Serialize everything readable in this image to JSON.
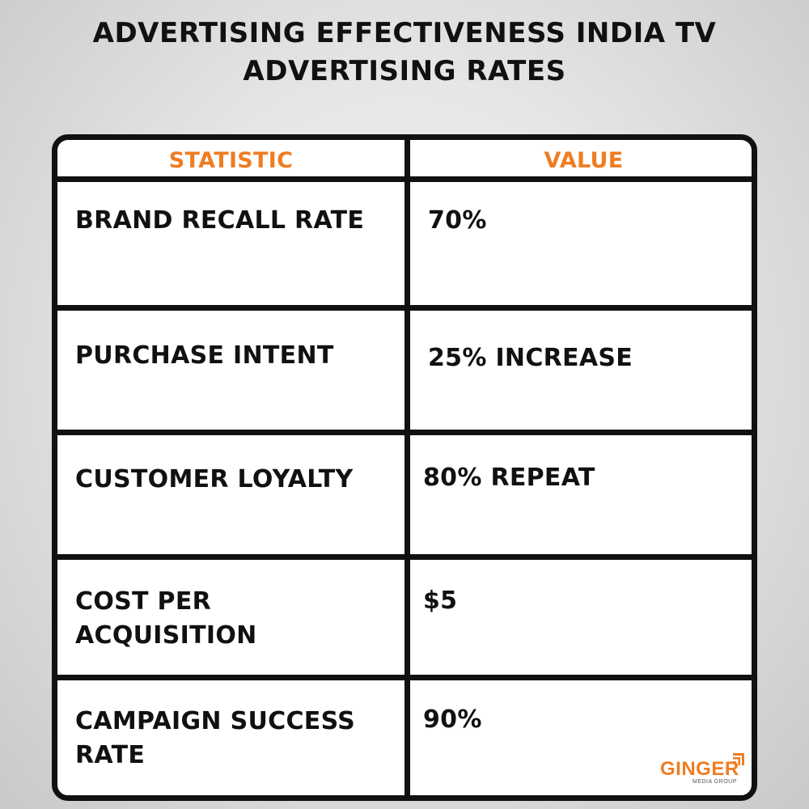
{
  "title": {
    "line1": "ADVERTISING EFFECTIVENESS INDIA TV",
    "line2": "ADVERTISING RATES"
  },
  "table": {
    "headers": {
      "statistic": "STATISTIC",
      "value": "VALUE"
    },
    "rows": [
      {
        "statistic": "BRAND RECALL RATE",
        "value": "70%"
      },
      {
        "statistic": "PURCHASE INTENT",
        "value": "25% INCREASE"
      },
      {
        "statistic": "CUSTOMER LOYALTY",
        "value": "80% REPEAT"
      },
      {
        "statistic": "COST PER ACQUISITION",
        "value": "$5"
      },
      {
        "statistic": "CAMPAIGN SUCCESS RATE",
        "value": "90%"
      }
    ]
  },
  "logo": {
    "word": "GINGER",
    "sub": "MEDIA GROUP",
    "icon": "bars-corner-icon"
  },
  "colors": {
    "accent": "#ef7d22",
    "text": "#111111",
    "background": "#e6e6e6"
  }
}
